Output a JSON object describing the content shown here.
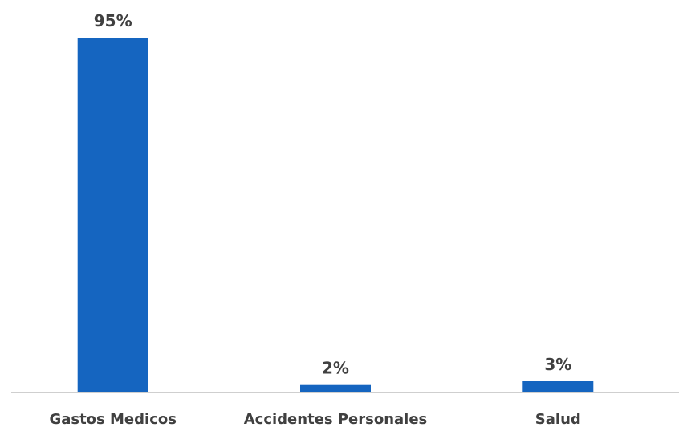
{
  "chart_data": {
    "type": "bar",
    "categories": [
      "Gastos Medicos",
      "Accidentes Personales",
      "Salud"
    ],
    "values": [
      95,
      2,
      3
    ],
    "data_labels": [
      "95%",
      "2%",
      "3%"
    ],
    "ylim": [
      0,
      100
    ],
    "grid": false,
    "legend": "none",
    "bar_color": "#1565C0",
    "axis_color": "#BFBFBF"
  }
}
